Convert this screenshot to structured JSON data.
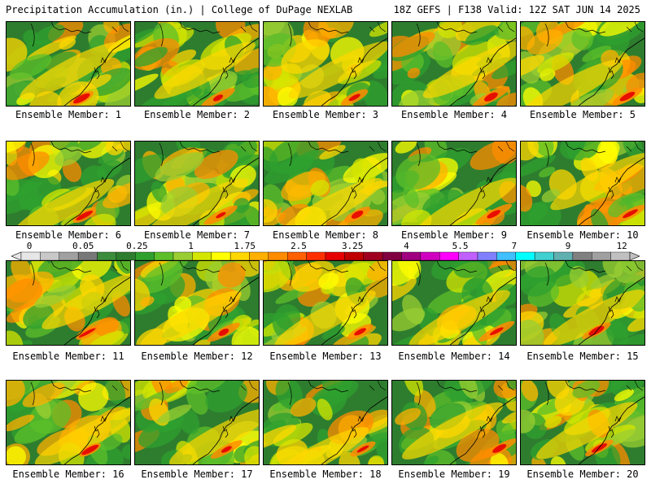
{
  "header": {
    "left": "Precipitation Accumulation (in.) | College of DuPage NEXLAB",
    "right": "18Z GEFS | F138 Valid: 12Z SAT JUN 14 2025"
  },
  "members": [
    "Ensemble Member: 1",
    "Ensemble Member: 2",
    "Ensemble Member: 3",
    "Ensemble Member: 4",
    "Ensemble Member: 5",
    "Ensemble Member: 6",
    "Ensemble Member: 7",
    "Ensemble Member: 8",
    "Ensemble Member: 9",
    "Ensemble Member: 10",
    "Ensemble Member: 11",
    "Ensemble Member: 12",
    "Ensemble Member: 13",
    "Ensemble Member: 14",
    "Ensemble Member: 15",
    "Ensemble Member: 16",
    "Ensemble Member: 17",
    "Ensemble Member: 18",
    "Ensemble Member: 19",
    "Ensemble Member: 20"
  ],
  "colorbar": {
    "labels": [
      "0",
      "0.05",
      "0.25",
      "1",
      "1.75",
      "2.5",
      "3.25",
      "4",
      "5.5",
      "7",
      "9",
      "12"
    ],
    "colors": [
      "#e6e6e6",
      "#c8c8c8",
      "#a0a0a0",
      "#787878",
      "#3c8c3c",
      "#2e7d2e",
      "#2fa02f",
      "#5cbf2a",
      "#9acd32",
      "#d4e600",
      "#ffff00",
      "#ffd700",
      "#ffb000",
      "#ff8c00",
      "#ff6000",
      "#ff3000",
      "#e60000",
      "#c00000",
      "#a00020",
      "#800040",
      "#a00080",
      "#d000c0",
      "#ff00ff",
      "#c060ff",
      "#8080ff",
      "#40c0ff",
      "#00ffff",
      "#40d0d0",
      "#60b0b0",
      "#808080",
      "#a0a0a0",
      "#c0c0c0"
    ]
  }
}
